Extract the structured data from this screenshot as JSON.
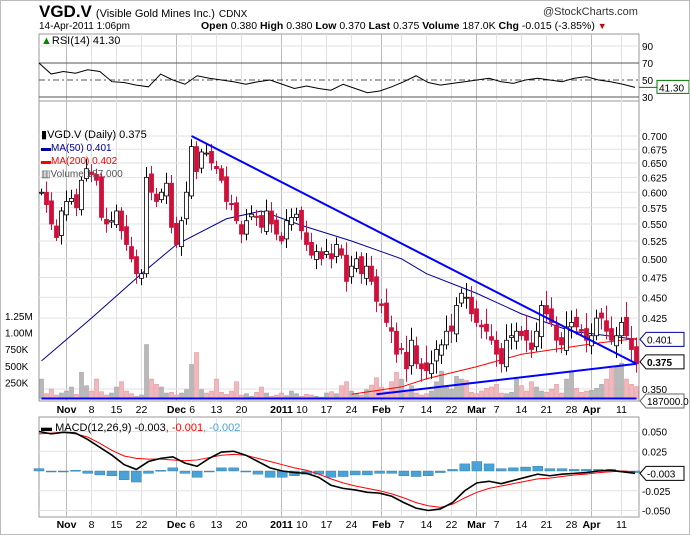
{
  "header": {
    "symbol": "VGD.V",
    "company": "(Visible Gold Mines Inc.)",
    "exchange": "CDNX",
    "date": "14-Apr-2011 1:06pm",
    "brand": "@StockCharts.com",
    "quote": {
      "open_label": "Open",
      "open": "0.380",
      "high_label": "High",
      "high": "0.380",
      "low_label": "Low",
      "low": "0.370",
      "last_label": "Last",
      "last": "0.375",
      "volume_label": "Volume",
      "volume": "187.0K",
      "chg_label": "Chg",
      "chg": "-0.015 (-3.85%)"
    }
  },
  "colors": {
    "up": "#ffffff",
    "down": "#d0103a",
    "ma50": "#000099",
    "ma200": "#ff0000",
    "trendline": "#0000ff",
    "vol_up": "#b8b8b8",
    "vol_down": "#f0b8bc",
    "macd": "#000000",
    "signal": "#ff0000",
    "hist": "#4aa3d8",
    "chg_down": "#cc0000"
  },
  "chart_data": [
    {
      "type": "line",
      "panel": "rsi",
      "legend": "RSI(14) 41.30",
      "last_tag": "41.30",
      "yticks": [
        "90",
        "70",
        "50",
        "30"
      ],
      "ylim": [
        20,
        100
      ],
      "levels": [
        70,
        30
      ],
      "midline": 50,
      "values": [
        70,
        57,
        60,
        58,
        62,
        60,
        48,
        47,
        44,
        42,
        57,
        50,
        45,
        55,
        52,
        50,
        48,
        45,
        48,
        50,
        45,
        40,
        43,
        40,
        38,
        45,
        40,
        35,
        37,
        42,
        48,
        55,
        47,
        44,
        46,
        48,
        50,
        52,
        48,
        46,
        50,
        52,
        50,
        48,
        52,
        54,
        50,
        48,
        45,
        41.3
      ]
    },
    {
      "type": "candlestick",
      "panel": "price",
      "scale": "log",
      "legend": {
        "price": "VGD.V (Daily) 0.375",
        "ma50": "MA(50) 0.401",
        "ma200": "MA(200) 0.402",
        "volume": "Volume 187,000"
      },
      "yticks": [
        "0.700",
        "0.675",
        "0.650",
        "0.625",
        "0.600",
        "0.575",
        "0.550",
        "0.525",
        "0.500",
        "0.475",
        "0.450",
        "0.425",
        "0.350"
      ],
      "vol_ticks": [
        "1.25M",
        "1.00M",
        "750K",
        "500K",
        "250K"
      ],
      "tags": {
        "ma": "0.401",
        "last": "0.375",
        "volume": "187000.00"
      },
      "start_date": "2010-10-25",
      "end_date": "2011-04-14",
      "close": [
        0.6,
        0.58,
        0.55,
        0.53,
        0.57,
        0.585,
        0.59,
        0.575,
        0.62,
        0.64,
        0.63,
        0.62,
        0.56,
        0.55,
        0.555,
        0.57,
        0.54,
        0.52,
        0.5,
        0.48,
        0.48,
        0.625,
        0.6,
        0.585,
        0.6,
        0.615,
        0.545,
        0.52,
        0.555,
        0.6,
        0.68,
        0.635,
        0.67,
        0.668,
        0.65,
        0.64,
        0.62,
        0.585,
        0.58,
        0.555,
        0.535,
        0.555,
        0.565,
        0.56,
        0.545,
        0.57,
        0.55,
        0.535,
        0.525,
        0.555,
        0.56,
        0.565,
        0.54,
        0.52,
        0.505,
        0.51,
        0.5,
        0.51,
        0.5,
        0.52,
        0.505,
        0.47,
        0.49,
        0.5,
        0.48,
        0.49,
        0.47,
        0.445,
        0.44,
        0.42,
        0.41,
        0.385,
        0.39,
        0.37,
        0.4,
        0.375,
        0.37,
        0.368,
        0.375,
        0.39,
        0.395,
        0.41,
        0.41,
        0.44,
        0.455,
        0.45,
        0.43,
        0.42,
        0.415,
        0.41,
        0.4,
        0.385,
        0.375,
        0.4,
        0.405,
        0.41,
        0.405,
        0.4,
        0.39,
        0.41,
        0.44,
        0.43,
        0.42,
        0.4,
        0.395,
        0.415,
        0.42,
        0.415,
        0.41,
        0.4,
        0.405,
        0.425,
        0.425,
        0.41,
        0.4,
        0.405,
        0.42,
        0.405,
        0.39,
        0.375
      ],
      "volume_k": [
        300,
        80,
        150,
        60,
        90,
        120,
        180,
        70,
        400,
        200,
        120,
        300,
        110,
        60,
        90,
        180,
        260,
        120,
        80,
        40,
        60,
        820,
        300,
        220,
        180,
        90,
        100,
        60,
        90,
        140,
        520,
        700,
        140,
        90,
        120,
        300,
        100,
        70,
        120,
        260,
        60,
        80,
        40,
        100,
        180,
        90,
        40,
        60,
        90,
        50,
        120,
        80,
        40,
        70,
        60,
        40,
        30,
        90,
        110,
        80,
        200,
        260,
        120,
        80,
        60,
        140,
        210,
        320,
        180,
        120,
        260,
        400,
        300,
        100,
        200,
        90,
        60,
        80,
        120,
        260,
        420,
        200,
        150,
        340,
        300,
        280,
        100,
        80,
        120,
        160,
        180,
        220,
        90,
        80,
        100,
        300,
        200,
        120,
        260,
        180,
        120,
        100,
        150,
        220,
        90,
        300,
        400,
        160,
        100,
        120,
        130,
        160,
        220,
        300,
        460,
        500,
        540,
        300,
        220,
        187
      ],
      "ma50": [
        [
          "2010-10-25",
          0.378
        ],
        [
          "2010-11-08",
          0.425
        ],
        [
          "2010-11-22",
          0.48
        ],
        [
          "2010-12-01",
          0.52
        ],
        [
          "2010-12-15",
          0.558
        ],
        [
          "2010-12-24",
          0.57
        ],
        [
          "2011-01-10",
          0.548
        ],
        [
          "2011-01-24",
          0.525
        ],
        [
          "2011-02-07",
          0.5
        ],
        [
          "2011-02-14",
          0.48
        ],
        [
          "2011-03-01",
          0.455
        ],
        [
          "2011-03-14",
          0.43
        ],
        [
          "2011-03-28",
          0.41
        ],
        [
          "2011-04-14",
          0.401
        ]
      ],
      "ma200": [
        [
          "2011-01-24",
          0.345
        ],
        [
          "2011-02-07",
          0.352
        ],
        [
          "2011-02-14",
          0.36
        ],
        [
          "2011-03-01",
          0.372
        ],
        [
          "2011-03-14",
          0.385
        ],
        [
          "2011-04-01",
          0.396
        ],
        [
          "2011-04-14",
          0.402
        ]
      ],
      "trendlines": [
        [
          [
            "2010-12-06",
            0.7
          ],
          [
            "2011-04-14",
            0.375
          ]
        ],
        [
          [
            "2011-01-31",
            0.345
          ],
          [
            "2011-04-14",
            0.375
          ]
        ],
        [
          [
            "2010-10-25",
            0.341
          ],
          [
            "2011-04-14",
            0.341
          ]
        ]
      ]
    },
    {
      "type": "line",
      "panel": "macd",
      "legend": {
        "name": "MACD(12,26,9)",
        "macd": "-0.003",
        "signal": "-0.001",
        "hist": "-0.002"
      },
      "last_tag": "-0.003",
      "yticks": [
        "0.050",
        "0.025",
        "-0.025",
        "-0.050"
      ],
      "macd": [
        0.05,
        0.047,
        0.049,
        0.048,
        0.04,
        0.03,
        0.02,
        0.008,
        0.002,
        0.012,
        0.016,
        0.018,
        0.01,
        0.006,
        0.016,
        0.024,
        0.025,
        0.02,
        0.012,
        0.004,
        0.0,
        -0.002,
        -0.003,
        -0.008,
        -0.018,
        -0.022,
        -0.024,
        -0.027,
        -0.028,
        -0.032,
        -0.04,
        -0.047,
        -0.05,
        -0.048,
        -0.04,
        -0.025,
        -0.015,
        -0.013,
        -0.016,
        -0.012,
        -0.008,
        -0.004,
        -0.006,
        -0.004,
        -0.003,
        -0.002,
        0.0,
        0.001,
        -0.001,
        -0.003
      ],
      "signal": [
        0.047,
        0.048,
        0.049,
        0.047,
        0.043,
        0.035,
        0.026,
        0.019,
        0.016,
        0.015,
        0.015,
        0.014,
        0.013,
        0.014,
        0.017,
        0.02,
        0.021,
        0.02,
        0.016,
        0.012,
        0.008,
        0.004,
        0.001,
        -0.004,
        -0.01,
        -0.015,
        -0.019,
        -0.022,
        -0.025,
        -0.029,
        -0.034,
        -0.04,
        -0.044,
        -0.046,
        -0.042,
        -0.034,
        -0.027,
        -0.022,
        -0.019,
        -0.016,
        -0.013,
        -0.01,
        -0.009,
        -0.007,
        -0.005,
        -0.004,
        -0.002,
        -0.001,
        0.0,
        -0.001
      ]
    }
  ],
  "xaxis": [
    {
      "label": "Nov",
      "date": "2010-11-01",
      "bold": true
    },
    {
      "label": "8",
      "date": "2010-11-08"
    },
    {
      "label": "15",
      "date": "2010-11-15"
    },
    {
      "label": "22",
      "date": "2010-11-22"
    },
    {
      "label": "Dec",
      "date": "2010-12-01",
      "bold": true
    },
    {
      "label": "6",
      "date": "2010-12-06"
    },
    {
      "label": "13",
      "date": "2010-12-13"
    },
    {
      "label": "20",
      "date": "2010-12-20"
    },
    {
      "label": "2011",
      "date": "2011-01-04",
      "bold": true
    },
    {
      "label": "10",
      "date": "2011-01-10"
    },
    {
      "label": "17",
      "date": "2011-01-17"
    },
    {
      "label": "24",
      "date": "2011-01-24"
    },
    {
      "label": "Feb",
      "date": "2011-02-01",
      "bold": true
    },
    {
      "label": "7",
      "date": "2011-02-07"
    },
    {
      "label": "14",
      "date": "2011-02-14"
    },
    {
      "label": "22",
      "date": "2011-02-22"
    },
    {
      "label": "Mar",
      "date": "2011-03-01",
      "bold": true
    },
    {
      "label": "7",
      "date": "2011-03-07"
    },
    {
      "label": "14",
      "date": "2011-03-14"
    },
    {
      "label": "21",
      "date": "2011-03-21"
    },
    {
      "label": "28",
      "date": "2011-03-28"
    },
    {
      "label": "Apr",
      "date": "2011-04-01",
      "bold": true
    },
    {
      "label": "11",
      "date": "2011-04-11"
    }
  ]
}
